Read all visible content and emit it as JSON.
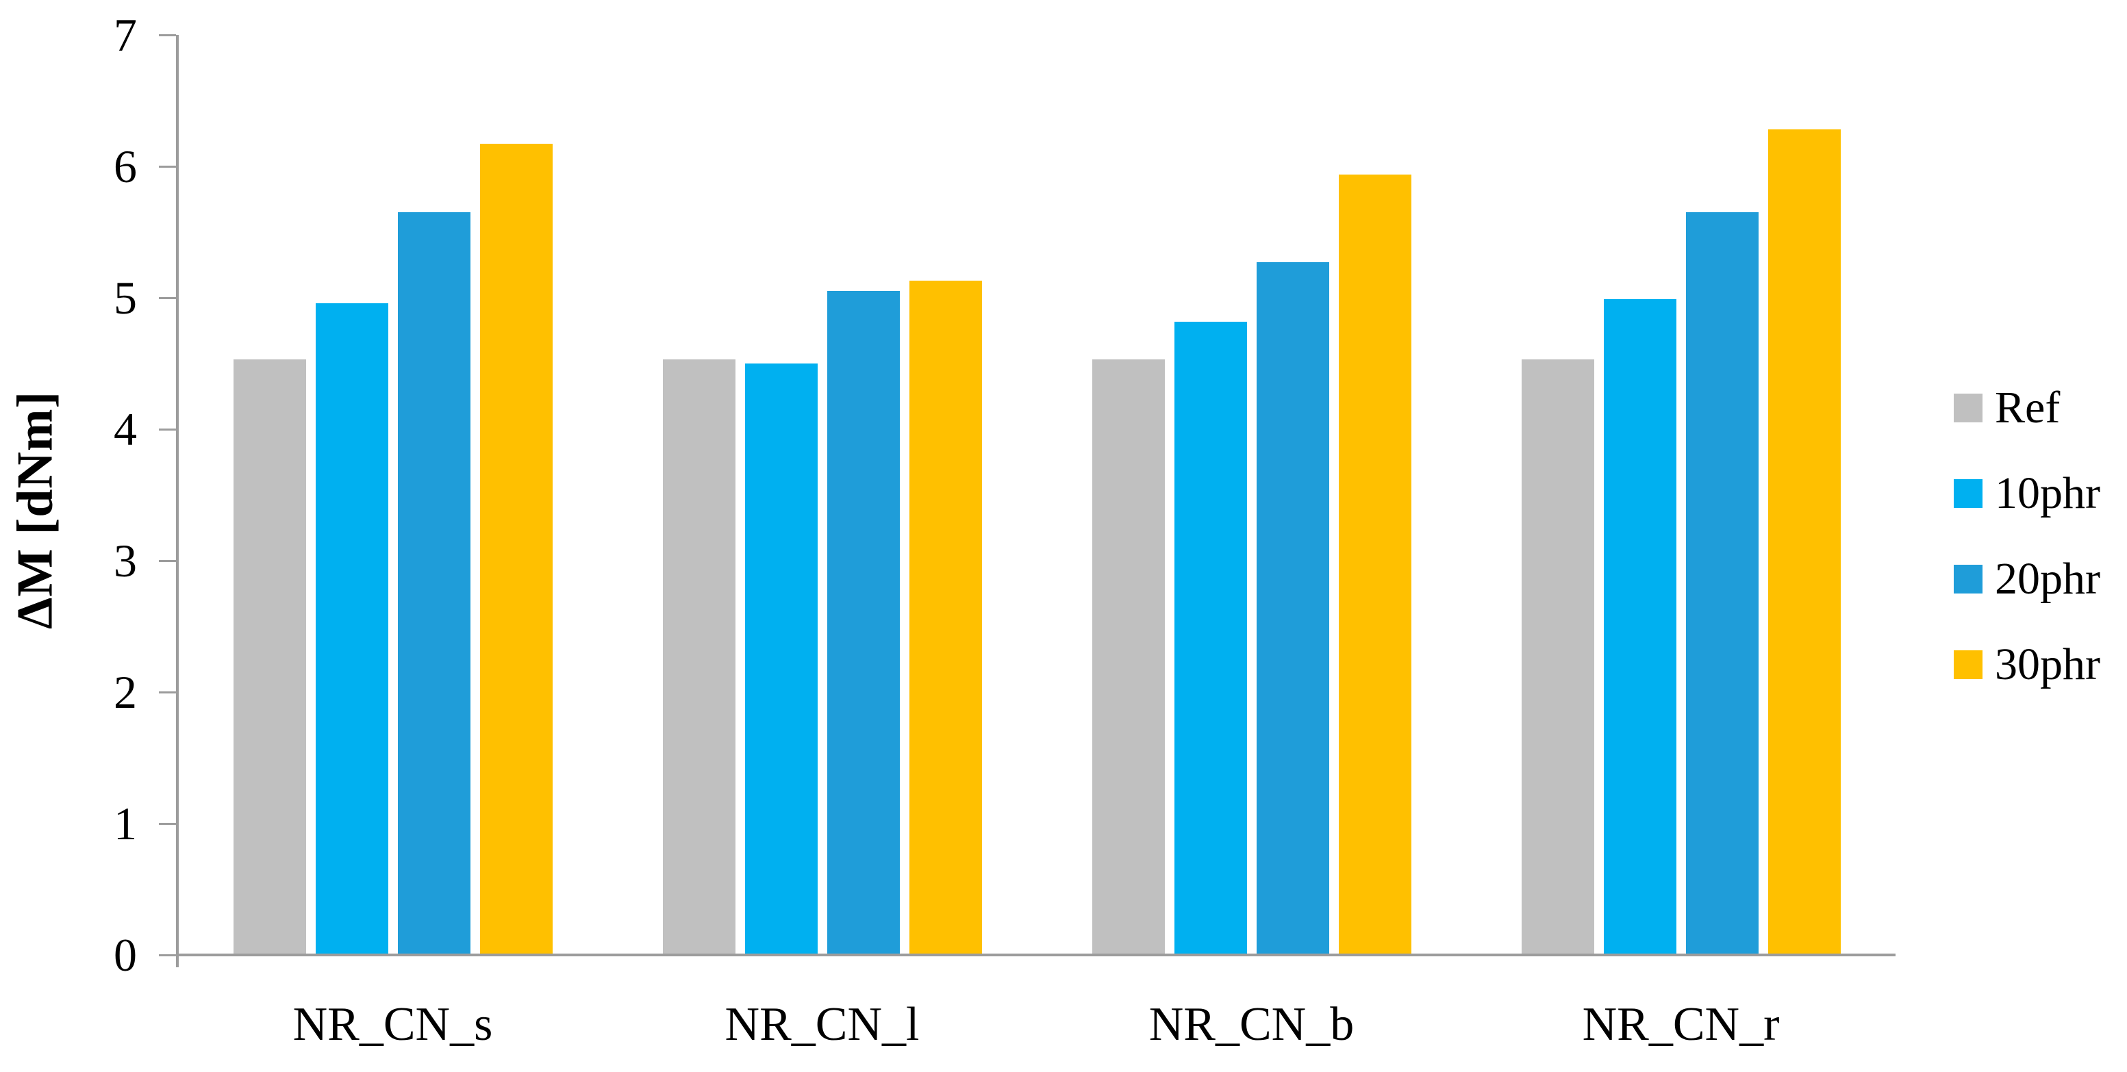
{
  "figure": {
    "kind": "grouped-bar-chart-figure",
    "background": "#ffffff"
  },
  "chart_data": {
    "type": "bar",
    "title": "",
    "xlabel": "",
    "ylabel": "ΔM [dNm]",
    "ylim": [
      0,
      7
    ],
    "yticks": [
      0,
      1,
      2,
      3,
      4,
      5,
      6,
      7
    ],
    "grid": false,
    "legend_position": "right",
    "categories": [
      "NR_CN_s",
      "NR_CN_l",
      "NR_CN_b",
      "NR_CN_r"
    ],
    "series": [
      {
        "name": "Ref",
        "color": "#C0C0C0",
        "values": [
          4.53,
          4.53,
          4.53,
          4.53
        ]
      },
      {
        "name": "10phr",
        "color": "#00B0F0",
        "values": [
          4.96,
          4.5,
          4.82,
          4.99
        ]
      },
      {
        "name": "20phr",
        "color": "#1F9DD9",
        "values": [
          5.65,
          5.05,
          5.27,
          5.65
        ]
      },
      {
        "name": "30phr",
        "color": "#FFC000",
        "values": [
          6.17,
          5.13,
          5.94,
          6.28
        ]
      }
    ],
    "axis_color": "#9C9C9C",
    "text_color": "#000000"
  }
}
